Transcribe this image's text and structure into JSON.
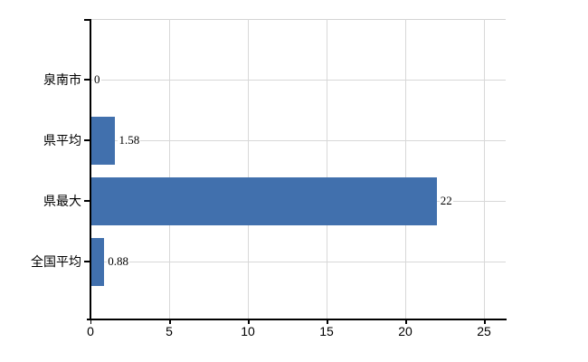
{
  "chart_data": {
    "type": "bar",
    "orientation": "horizontal",
    "categories": [
      "泉南市",
      "県平均",
      "県最大",
      "全国平均"
    ],
    "values": [
      0,
      1.58,
      22,
      0.88
    ],
    "value_labels": [
      "0",
      "1.58",
      "22",
      "0.88"
    ],
    "x_ticks": [
      0,
      5,
      10,
      15,
      20,
      25
    ],
    "x_tick_labels": [
      "0",
      "5",
      "10",
      "15",
      "20",
      "25"
    ],
    "xlim": [
      0,
      26.4
    ],
    "grid": true,
    "legend": false,
    "colors": {
      "bar": "#4170ad",
      "axis": "#000000",
      "gridline": "#d8d8d8",
      "background": "#ffffff",
      "text": "#000000"
    }
  }
}
